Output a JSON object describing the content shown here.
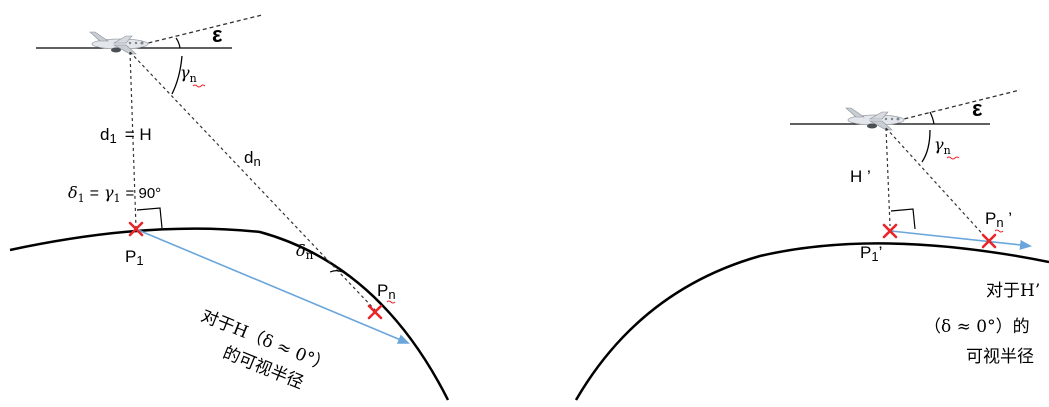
{
  "left": {
    "epsilon": "ε",
    "gamma_n": "γ",
    "gamma_n_sub": "n",
    "d1_main": "d",
    "d1_sub": "1",
    "d1_eq": "= H",
    "dn_main": "d",
    "dn_sub": "n",
    "delta1_main": "δ",
    "delta1_sub": "1",
    "delta1_eq": "=",
    "gamma1_main": "γ",
    "gamma1_sub": "1",
    "delta1_val": "= 90°",
    "deltan_main": "δ",
    "deltan_sub": "n",
    "p1_main": "P",
    "p1_sub": "1",
    "pn_main": "P",
    "pn_sub": "n",
    "caption_line1": "对于H（δ ≈ 0°）",
    "caption_line2": "的可视半径"
  },
  "right": {
    "epsilon": "ε",
    "gamma_n": "γ",
    "gamma_n_sub": "n",
    "h_label": "H ’",
    "p1_main": "P",
    "p1_sub": "1",
    "p1_prime": "’",
    "pn_main": "P",
    "pn_sub": "n",
    "pn_prime": " ’",
    "caption_line1": "对于H’",
    "caption_line2": "（δ ≈ 0°）的",
    "caption_line3": "可视半径"
  },
  "colors": {
    "line": "#000000",
    "dashed": "#333333",
    "marker": "#e8262a",
    "arrow": "#6aa6dc",
    "squiggle": "#e8262a"
  },
  "icons": [
    "airplane-icon",
    "cross-marker-icon",
    "right-angle-icon"
  ]
}
